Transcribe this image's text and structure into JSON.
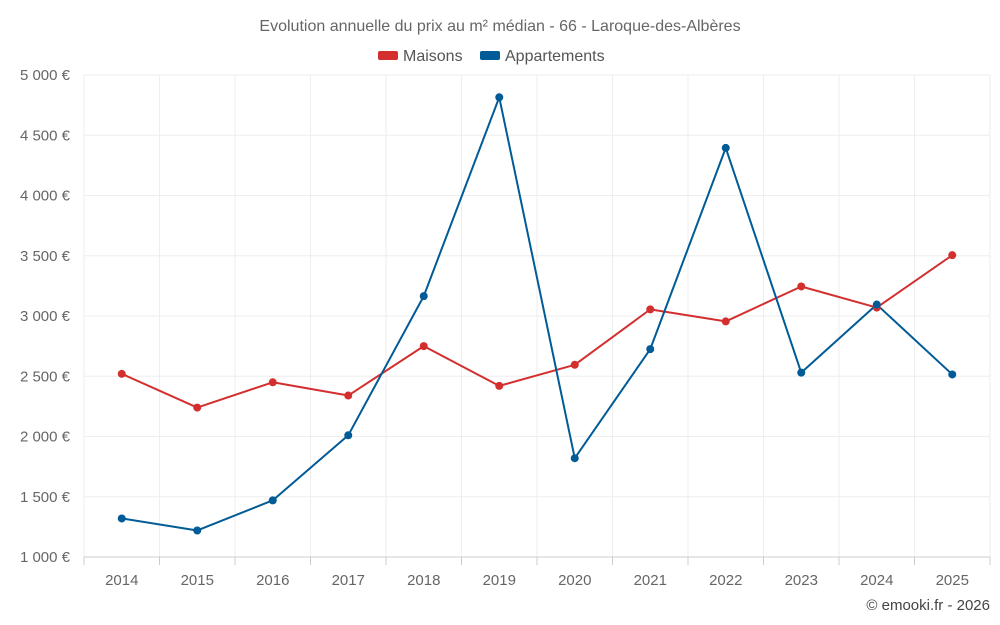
{
  "chart_data": {
    "type": "line",
    "title": "Evolution annuelle du prix au m² médian - 66 - Laroque-des-Albères",
    "categories": [
      "2014",
      "2015",
      "2016",
      "2017",
      "2018",
      "2019",
      "2020",
      "2021",
      "2022",
      "2023",
      "2024",
      "2025"
    ],
    "series": [
      {
        "name": "Maisons",
        "color": "#d32f2f",
        "values": [
          2520,
          2240,
          2450,
          2340,
          2750,
          2420,
          2595,
          3055,
          2955,
          3245,
          3070,
          3505
        ]
      },
      {
        "name": "Appartements",
        "color": "#005b96",
        "values": [
          1320,
          1220,
          1470,
          2010,
          3165,
          4815,
          1820,
          2725,
          4395,
          2530,
          3095,
          2515
        ]
      }
    ],
    "ylim": [
      1000,
      5000
    ],
    "yticks": [
      1000,
      1500,
      2000,
      2500,
      3000,
      3500,
      4000,
      4500,
      5000
    ],
    "ytick_labels": [
      "1 000 €",
      "1 500 €",
      "2 000 €",
      "2 500 €",
      "3 000 €",
      "3 500 €",
      "4 000 €",
      "4 500 €",
      "5 000 €"
    ],
    "xlabel": "",
    "ylabel": "",
    "grid": true,
    "legend": "top-center"
  },
  "credit": "© emooki.fr - 2026"
}
